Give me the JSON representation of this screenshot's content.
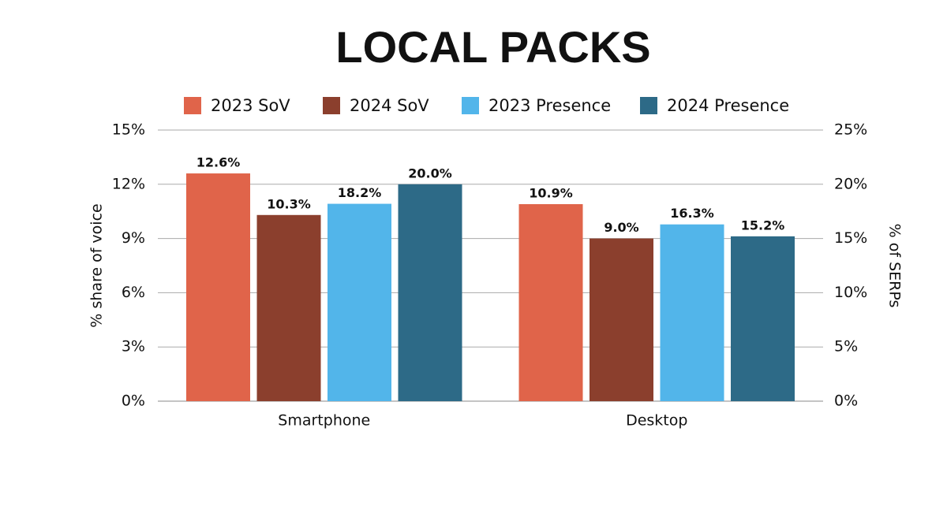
{
  "chart_data": {
    "type": "bar",
    "title": "LOCAL PACKS",
    "ylabel": "% share of voice",
    "y2label": "% of SERPs",
    "categories": [
      "Smartphone",
      "Desktop"
    ],
    "series": [
      {
        "name": "2023 SoV",
        "color": "#e0644a",
        "values": [
          12.6,
          10.9
        ],
        "value_labels": [
          "12.6%",
          "10.9%"
        ]
      },
      {
        "name": "2024 SoV",
        "color": "#8b3f2d",
        "values": [
          10.3,
          9.0
        ],
        "value_labels": [
          "10.3%",
          "9.0%"
        ]
      },
      {
        "name": "2023 Presence",
        "color": "#52b5ea",
        "axis": "y2",
        "values": [
          18.2,
          16.3
        ],
        "value_labels": [
          "18.2%",
          "16.3%"
        ]
      },
      {
        "name": "2024 Presence",
        "color": "#2d6a87",
        "axis": "y2",
        "values": [
          20.0,
          15.2
        ],
        "value_labels": [
          "20.0%",
          "15.2%"
        ]
      }
    ],
    "ylim": [
      0,
      15
    ],
    "yticks": [
      {
        "value": 0,
        "label": "0%"
      },
      {
        "value": 3,
        "label": "3%"
      },
      {
        "value": 6,
        "label": "6%"
      },
      {
        "value": 9,
        "label": "9%"
      },
      {
        "value": 12,
        "label": "12%"
      },
      {
        "value": 15,
        "label": "15%"
      }
    ],
    "y2lim": [
      0,
      25
    ],
    "y2ticks": [
      {
        "value": 0,
        "label": "0%"
      },
      {
        "value": 5,
        "label": "5%"
      },
      {
        "value": 10,
        "label": "10%"
      },
      {
        "value": 15,
        "label": "15%"
      },
      {
        "value": 20,
        "label": "20%"
      },
      {
        "value": 25,
        "label": "25%"
      }
    ],
    "grid": true,
    "legend": "top"
  }
}
